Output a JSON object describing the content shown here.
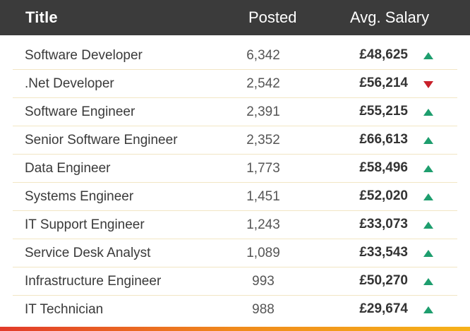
{
  "header": {
    "title": "Title",
    "posted": "Posted",
    "salary": "Avg. Salary"
  },
  "colors": {
    "header_bg": "#3b3b3b",
    "up": "#1e9e6e",
    "down": "#c8202a"
  },
  "rows": [
    {
      "title": "Software Developer",
      "posted": "6,342",
      "salary": "£48,625",
      "trend": "up"
    },
    {
      "title": ".Net Developer",
      "posted": "2,542",
      "salary": "£56,214",
      "trend": "down"
    },
    {
      "title": "Software Engineer",
      "posted": "2,391",
      "salary": "£55,215",
      "trend": "up"
    },
    {
      "title": "Senior Software Engineer",
      "posted": "2,352",
      "salary": "£66,613",
      "trend": "up"
    },
    {
      "title": "Data Engineer",
      "posted": "1,773",
      "salary": "£58,496",
      "trend": "up"
    },
    {
      "title": "Systems Engineer",
      "posted": "1,451",
      "salary": "£52,020",
      "trend": "up"
    },
    {
      "title": "IT Support Engineer",
      "posted": "1,243",
      "salary": "£33,073",
      "trend": "up"
    },
    {
      "title": "Service Desk Analyst",
      "posted": "1,089",
      "salary": "£33,543",
      "trend": "up"
    },
    {
      "title": "Infrastructure Engineer",
      "posted": "993",
      "salary": "£50,270",
      "trend": "up"
    },
    {
      "title": "IT Technician",
      "posted": "988",
      "salary": "£29,674",
      "trend": "up"
    }
  ]
}
